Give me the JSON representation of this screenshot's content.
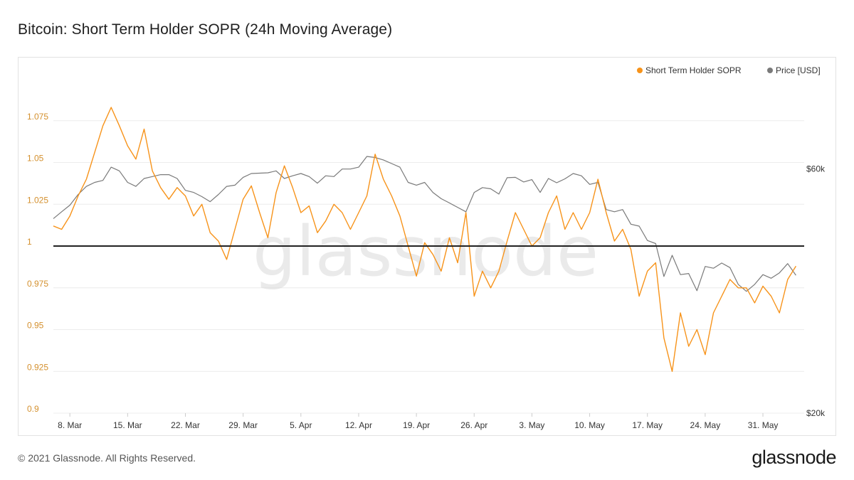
{
  "title": "Bitcoin: Short Term Holder SOPR (24h Moving Average)",
  "footer": {
    "copyright": "© 2021 Glassnode. All Rights Reserved.",
    "brand": "glassnode"
  },
  "watermark": "glassnode",
  "colors": {
    "sopr": "#f7931a",
    "price": "#7a7a7a",
    "baseline": "#222222",
    "grid": "#ececec",
    "left_tick": "#d4902e"
  },
  "chart_data": {
    "type": "line",
    "title": "Bitcoin: Short Term Holder SOPR (24h Moving Average)",
    "legend": {
      "placement": "top-right",
      "entries": [
        "Short Term Holder SOPR",
        "Price [USD]"
      ]
    },
    "grid": true,
    "x_range": [
      "2021-03-06",
      "2021-06-05"
    ],
    "x_ticks": [
      {
        "date": "2021-03-08",
        "label": "8. Mar"
      },
      {
        "date": "2021-03-15",
        "label": "15. Mar"
      },
      {
        "date": "2021-03-22",
        "label": "22. Mar"
      },
      {
        "date": "2021-03-29",
        "label": "29. Mar"
      },
      {
        "date": "2021-04-05",
        "label": "5. Apr"
      },
      {
        "date": "2021-04-12",
        "label": "12. Apr"
      },
      {
        "date": "2021-04-19",
        "label": "19. Apr"
      },
      {
        "date": "2021-04-26",
        "label": "26. Apr"
      },
      {
        "date": "2021-05-03",
        "label": "3. May"
      },
      {
        "date": "2021-05-10",
        "label": "10. May"
      },
      {
        "date": "2021-05-17",
        "label": "17. May"
      },
      {
        "date": "2021-05-24",
        "label": "24. May"
      },
      {
        "date": "2021-05-31",
        "label": "31. May"
      }
    ],
    "y_left": {
      "scale": "linear",
      "range": [
        0.9,
        1.1
      ],
      "ticks": [
        {
          "value": 0.9,
          "label": "0.9"
        },
        {
          "value": 0.925,
          "label": "0.925"
        },
        {
          "value": 0.95,
          "label": "0.95"
        },
        {
          "value": 0.975,
          "label": "0.975"
        },
        {
          "value": 1.0,
          "label": "1"
        },
        {
          "value": 1.025,
          "label": "1.025"
        },
        {
          "value": 1.05,
          "label": "1.05"
        },
        {
          "value": 1.075,
          "label": "1.075"
        }
      ]
    },
    "y_right": {
      "scale": "log",
      "range": [
        20000,
        90000
      ],
      "ticks": [
        {
          "value": 20000,
          "label": "$20k"
        },
        {
          "value": 60000,
          "label": "$60k"
        }
      ]
    },
    "reference_line": {
      "axis": "left",
      "value": 1.0
    },
    "series": [
      {
        "name": "Short Term Holder SOPR",
        "axis": "left",
        "color": "#f7931a",
        "points": [
          [
            "2021-03-06",
            1.012
          ],
          [
            "2021-03-07",
            1.01
          ],
          [
            "2021-03-08",
            1.018
          ],
          [
            "2021-03-09",
            1.03
          ],
          [
            "2021-03-10",
            1.04
          ],
          [
            "2021-03-11",
            1.056
          ],
          [
            "2021-03-12",
            1.072
          ],
          [
            "2021-03-13",
            1.083
          ],
          [
            "2021-03-14",
            1.072
          ],
          [
            "2021-03-15",
            1.06
          ],
          [
            "2021-03-16",
            1.052
          ],
          [
            "2021-03-17",
            1.07
          ],
          [
            "2021-03-18",
            1.045
          ],
          [
            "2021-03-19",
            1.035
          ],
          [
            "2021-03-20",
            1.028
          ],
          [
            "2021-03-21",
            1.035
          ],
          [
            "2021-03-22",
            1.03
          ],
          [
            "2021-03-23",
            1.018
          ],
          [
            "2021-03-24",
            1.025
          ],
          [
            "2021-03-25",
            1.008
          ],
          [
            "2021-03-26",
            1.003
          ],
          [
            "2021-03-27",
            0.992
          ],
          [
            "2021-03-28",
            1.01
          ],
          [
            "2021-03-29",
            1.028
          ],
          [
            "2021-03-30",
            1.036
          ],
          [
            "2021-03-31",
            1.02
          ],
          [
            "2021-04-01",
            1.005
          ],
          [
            "2021-04-02",
            1.032
          ],
          [
            "2021-04-03",
            1.048
          ],
          [
            "2021-04-04",
            1.035
          ],
          [
            "2021-04-05",
            1.02
          ],
          [
            "2021-04-06",
            1.024
          ],
          [
            "2021-04-07",
            1.008
          ],
          [
            "2021-04-08",
            1.015
          ],
          [
            "2021-04-09",
            1.025
          ],
          [
            "2021-04-10",
            1.02
          ],
          [
            "2021-04-11",
            1.01
          ],
          [
            "2021-04-12",
            1.02
          ],
          [
            "2021-04-13",
            1.03
          ],
          [
            "2021-04-14",
            1.055
          ],
          [
            "2021-04-15",
            1.04
          ],
          [
            "2021-04-16",
            1.03
          ],
          [
            "2021-04-17",
            1.018
          ],
          [
            "2021-04-18",
            1.0
          ],
          [
            "2021-04-19",
            0.982
          ],
          [
            "2021-04-20",
            1.002
          ],
          [
            "2021-04-21",
            0.995
          ],
          [
            "2021-04-22",
            0.985
          ],
          [
            "2021-04-23",
            1.005
          ],
          [
            "2021-04-24",
            0.99
          ],
          [
            "2021-04-25",
            1.02
          ],
          [
            "2021-04-26",
            0.97
          ],
          [
            "2021-04-27",
            0.985
          ],
          [
            "2021-04-28",
            0.975
          ],
          [
            "2021-04-29",
            0.985
          ],
          [
            "2021-04-30",
            1.003
          ],
          [
            "2021-05-01",
            1.02
          ],
          [
            "2021-05-02",
            1.01
          ],
          [
            "2021-05-03",
            1.0
          ],
          [
            "2021-05-04",
            1.005
          ],
          [
            "2021-05-05",
            1.02
          ],
          [
            "2021-05-06",
            1.03
          ],
          [
            "2021-05-07",
            1.01
          ],
          [
            "2021-05-08",
            1.02
          ],
          [
            "2021-05-09",
            1.01
          ],
          [
            "2021-05-10",
            1.02
          ],
          [
            "2021-05-11",
            1.04
          ],
          [
            "2021-05-12",
            1.02
          ],
          [
            "2021-05-13",
            1.003
          ],
          [
            "2021-05-14",
            1.01
          ],
          [
            "2021-05-15",
            0.998
          ],
          [
            "2021-05-16",
            0.97
          ],
          [
            "2021-05-17",
            0.985
          ],
          [
            "2021-05-18",
            0.99
          ],
          [
            "2021-05-19",
            0.945
          ],
          [
            "2021-05-20",
            0.925
          ],
          [
            "2021-05-21",
            0.96
          ],
          [
            "2021-05-22",
            0.94
          ],
          [
            "2021-05-23",
            0.95
          ],
          [
            "2021-05-24",
            0.935
          ],
          [
            "2021-05-25",
            0.96
          ],
          [
            "2021-05-26",
            0.97
          ],
          [
            "2021-05-27",
            0.98
          ],
          [
            "2021-05-28",
            0.975
          ],
          [
            "2021-05-29",
            0.975
          ],
          [
            "2021-05-30",
            0.966
          ],
          [
            "2021-05-31",
            0.976
          ],
          [
            "2021-06-01",
            0.97
          ],
          [
            "2021-06-02",
            0.96
          ],
          [
            "2021-06-03",
            0.98
          ],
          [
            "2021-06-04",
            0.988
          ]
        ]
      },
      {
        "name": "Price [USD]",
        "axis": "right",
        "color": "#7a7a7a",
        "points": [
          [
            "2021-03-06",
            48000
          ],
          [
            "2021-03-07",
            49500
          ],
          [
            "2021-03-08",
            51000
          ],
          [
            "2021-03-09",
            53500
          ],
          [
            "2021-03-10",
            55500
          ],
          [
            "2021-03-11",
            56500
          ],
          [
            "2021-03-12",
            57000
          ],
          [
            "2021-03-13",
            60500
          ],
          [
            "2021-03-14",
            59500
          ],
          [
            "2021-03-15",
            56500
          ],
          [
            "2021-03-16",
            55500
          ],
          [
            "2021-03-17",
            57500
          ],
          [
            "2021-03-18",
            58000
          ],
          [
            "2021-03-19",
            58500
          ],
          [
            "2021-03-20",
            58500
          ],
          [
            "2021-03-21",
            57500
          ],
          [
            "2021-03-22",
            54500
          ],
          [
            "2021-03-23",
            54000
          ],
          [
            "2021-03-24",
            53000
          ],
          [
            "2021-03-25",
            51800
          ],
          [
            "2021-03-26",
            53500
          ],
          [
            "2021-03-27",
            55500
          ],
          [
            "2021-03-28",
            55800
          ],
          [
            "2021-03-29",
            57800
          ],
          [
            "2021-03-30",
            58800
          ],
          [
            "2021-03-31",
            58900
          ],
          [
            "2021-04-01",
            59000
          ],
          [
            "2021-04-02",
            59500
          ],
          [
            "2021-04-03",
            57500
          ],
          [
            "2021-04-04",
            58200
          ],
          [
            "2021-04-05",
            58800
          ],
          [
            "2021-04-06",
            58000
          ],
          [
            "2021-04-07",
            56300
          ],
          [
            "2021-04-08",
            58200
          ],
          [
            "2021-04-09",
            58000
          ],
          [
            "2021-04-10",
            60000
          ],
          [
            "2021-04-11",
            60000
          ],
          [
            "2021-04-12",
            60500
          ],
          [
            "2021-04-13",
            63500
          ],
          [
            "2021-04-14",
            63200
          ],
          [
            "2021-04-15",
            62500
          ],
          [
            "2021-04-16",
            61500
          ],
          [
            "2021-04-17",
            60500
          ],
          [
            "2021-04-18",
            56500
          ],
          [
            "2021-04-19",
            55800
          ],
          [
            "2021-04-20",
            56500
          ],
          [
            "2021-04-21",
            54000
          ],
          [
            "2021-04-22",
            52500
          ],
          [
            "2021-04-23",
            51500
          ],
          [
            "2021-04-24",
            50500
          ],
          [
            "2021-04-25",
            49500
          ],
          [
            "2021-04-26",
            54000
          ],
          [
            "2021-04-27",
            55200
          ],
          [
            "2021-04-28",
            54900
          ],
          [
            "2021-04-29",
            53600
          ],
          [
            "2021-04-30",
            57700
          ],
          [
            "2021-05-01",
            57800
          ],
          [
            "2021-05-02",
            56600
          ],
          [
            "2021-05-03",
            57200
          ],
          [
            "2021-05-04",
            54000
          ],
          [
            "2021-05-05",
            57500
          ],
          [
            "2021-05-06",
            56400
          ],
          [
            "2021-05-07",
            57400
          ],
          [
            "2021-05-08",
            58800
          ],
          [
            "2021-05-09",
            58200
          ],
          [
            "2021-05-10",
            56000
          ],
          [
            "2021-05-11",
            56500
          ],
          [
            "2021-05-12",
            50000
          ],
          [
            "2021-05-13",
            49500
          ],
          [
            "2021-05-14",
            50000
          ],
          [
            "2021-05-15",
            46800
          ],
          [
            "2021-05-16",
            46400
          ],
          [
            "2021-05-17",
            43500
          ],
          [
            "2021-05-18",
            42900
          ],
          [
            "2021-05-19",
            37000
          ],
          [
            "2021-05-20",
            40700
          ],
          [
            "2021-05-21",
            37300
          ],
          [
            "2021-05-22",
            37500
          ],
          [
            "2021-05-23",
            34700
          ],
          [
            "2021-05-24",
            38700
          ],
          [
            "2021-05-25",
            38400
          ],
          [
            "2021-05-26",
            39300
          ],
          [
            "2021-05-27",
            38500
          ],
          [
            "2021-05-28",
            35700
          ],
          [
            "2021-05-29",
            34600
          ],
          [
            "2021-05-30",
            35700
          ],
          [
            "2021-05-31",
            37300
          ],
          [
            "2021-06-01",
            36700
          ],
          [
            "2021-06-02",
            37600
          ],
          [
            "2021-06-03",
            39200
          ],
          [
            "2021-06-04",
            37200
          ]
        ]
      }
    ]
  }
}
